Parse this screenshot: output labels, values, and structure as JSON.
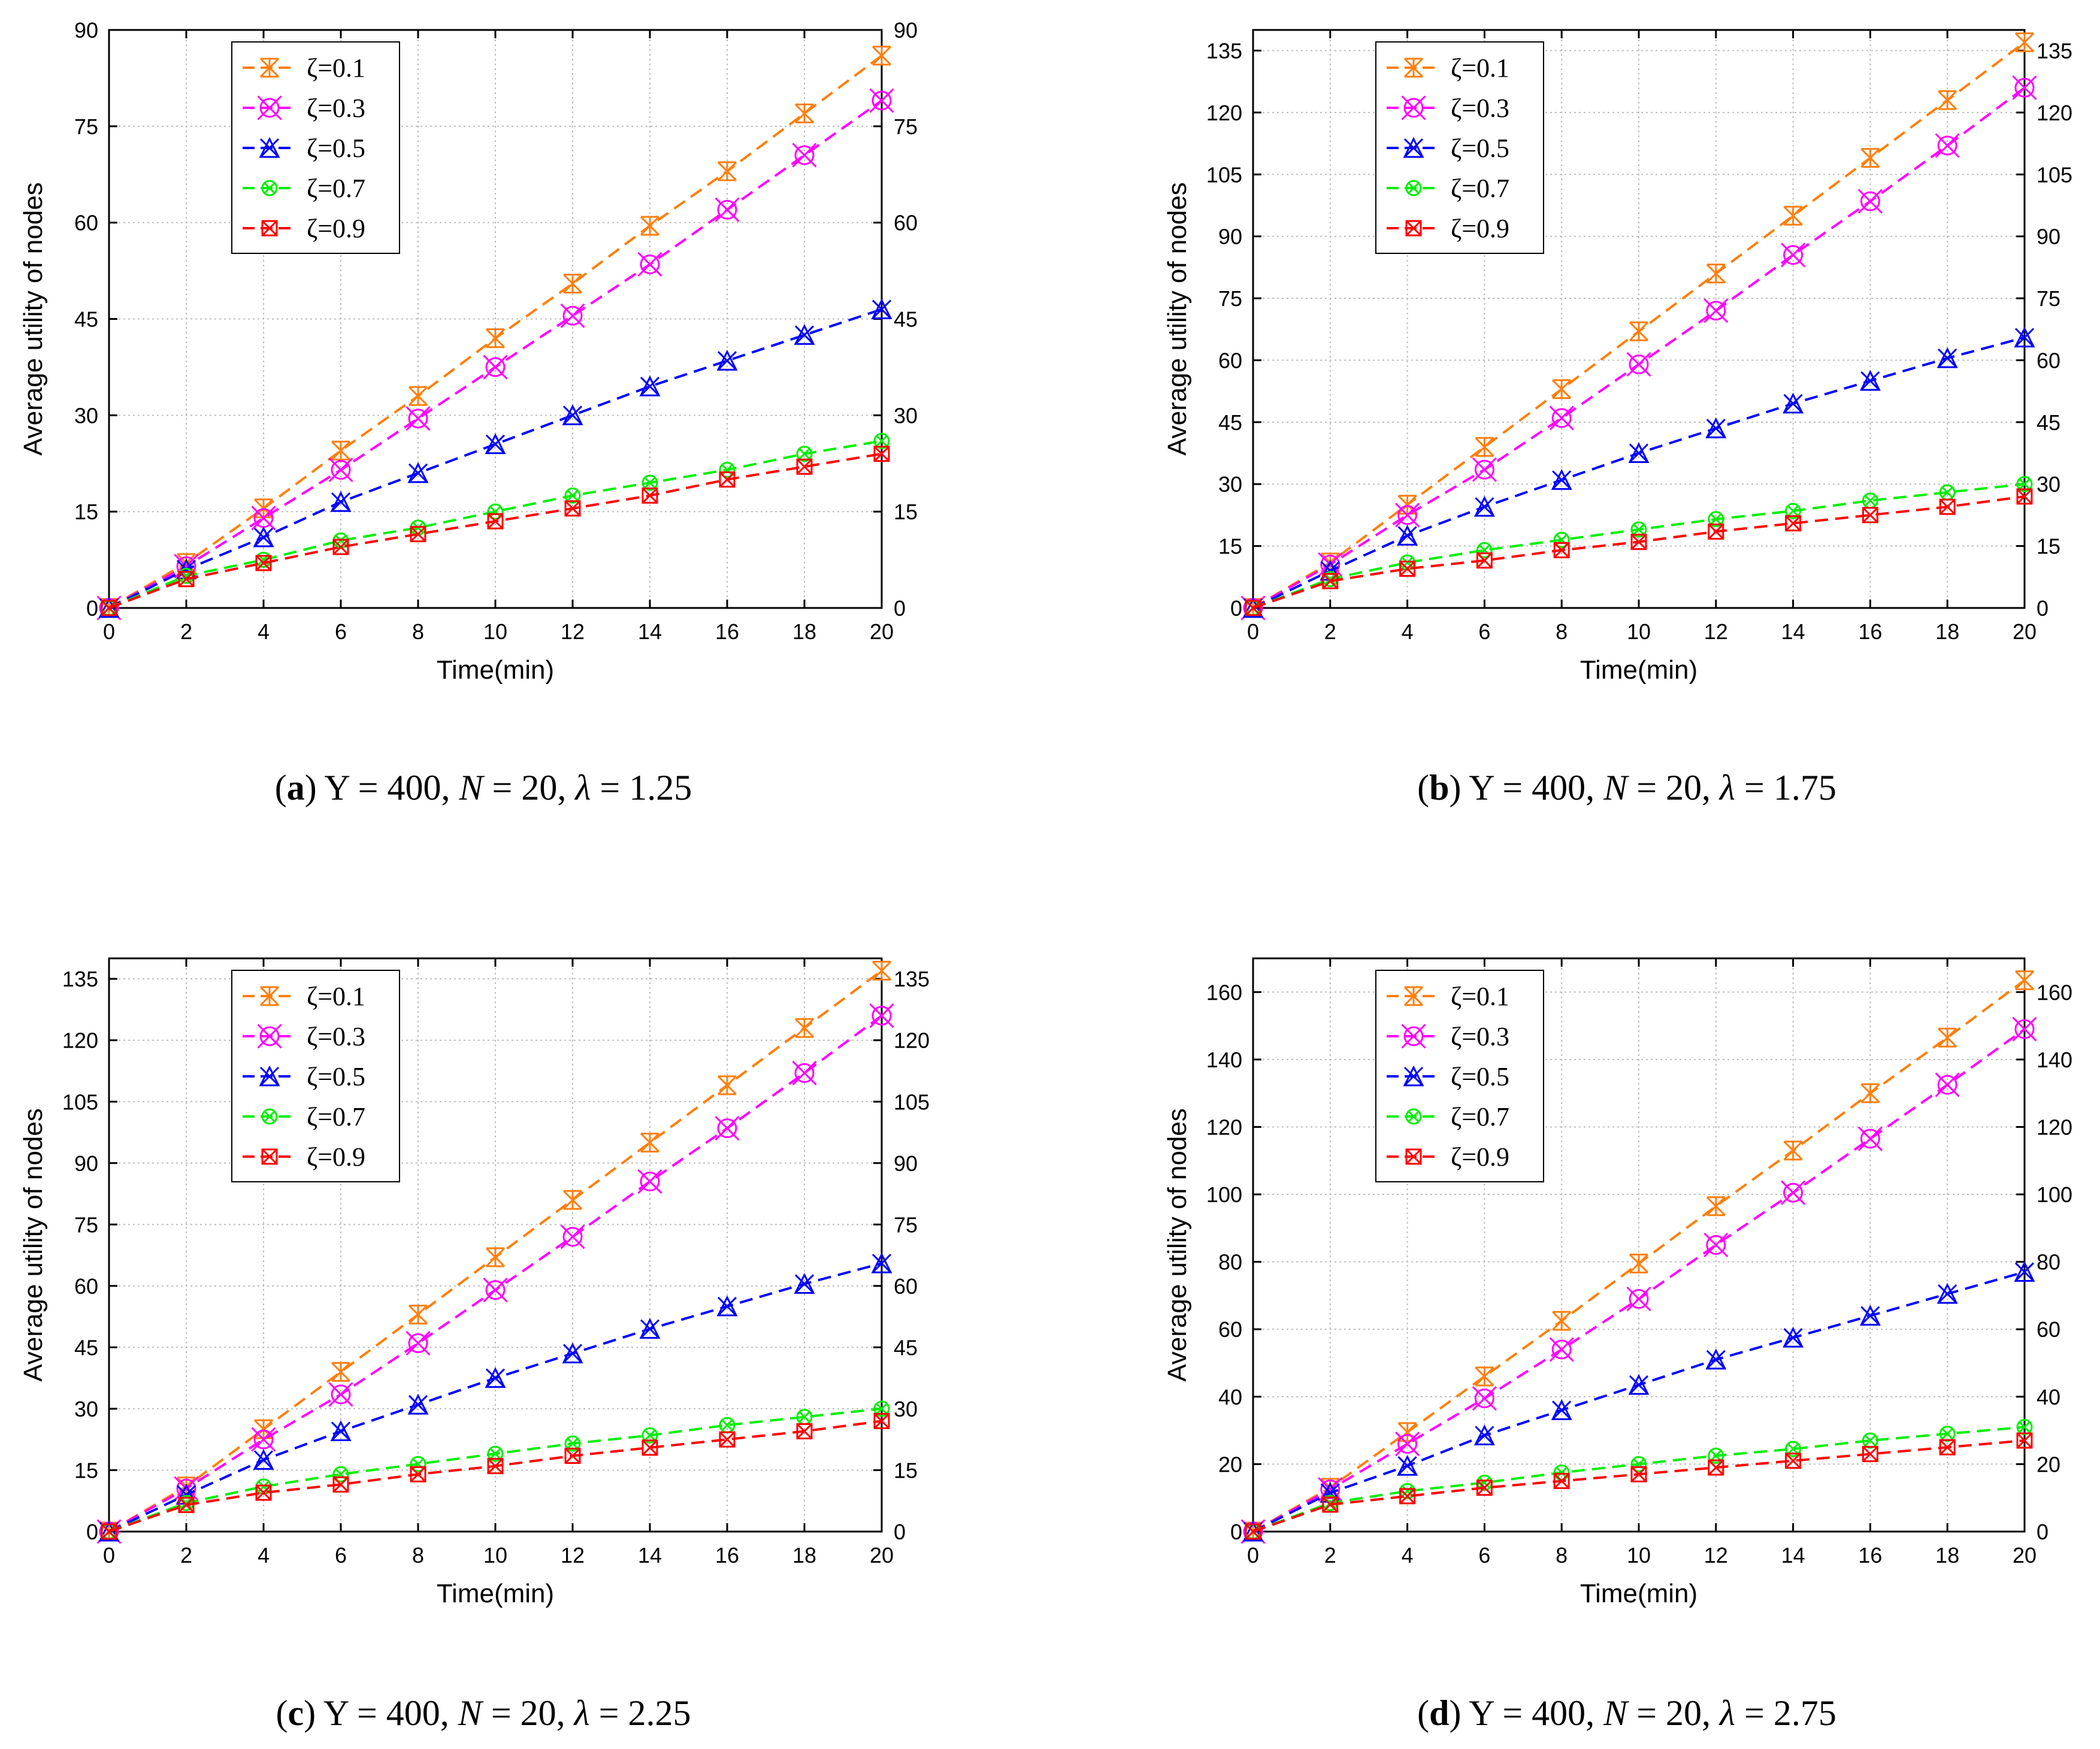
{
  "chart_data": [
    {
      "type": "line",
      "panel_label": "a",
      "caption": {
        "Y": "400",
        "N": "20",
        "lambda": "1.25"
      },
      "xlabel": "Time(min)",
      "ylabel": "Average utility of nodes",
      "x": [
        0,
        2,
        4,
        6,
        8,
        10,
        12,
        14,
        16,
        18,
        20
      ],
      "xlim": [
        0,
        20
      ],
      "ylim": [
        0,
        90
      ],
      "yticks": [
        0,
        15,
        30,
        45,
        60,
        75,
        90
      ],
      "xticks": [
        0,
        2,
        4,
        6,
        8,
        10,
        12,
        14,
        16,
        18,
        20
      ],
      "grid": true,
      "legend_position": "top-left",
      "series": [
        {
          "name": "ζ=0.1",
          "color": "#ff7f0e",
          "values": [
            0,
            7.0,
            15.5,
            24.5,
            33.0,
            42.0,
            50.5,
            59.5,
            68.0,
            77.0,
            86.0
          ]
        },
        {
          "name": "ζ=0.3",
          "color": "#ff00ff",
          "values": [
            0,
            6.5,
            14.0,
            21.5,
            29.5,
            37.5,
            45.5,
            53.5,
            62.0,
            70.5,
            79.0
          ]
        },
        {
          "name": "ζ=0.5",
          "color": "#0000ff",
          "values": [
            0,
            6.0,
            11.0,
            16.5,
            21.0,
            25.5,
            30.0,
            34.5,
            38.5,
            42.5,
            46.5
          ]
        },
        {
          "name": "ζ=0.7",
          "color": "#00ee00",
          "values": [
            0,
            5.0,
            7.5,
            10.5,
            12.5,
            15.0,
            17.5,
            19.5,
            21.5,
            24.0,
            26.0
          ]
        },
        {
          "name": "ζ=0.9",
          "color": "#ff0000",
          "values": [
            0,
            4.5,
            7.0,
            9.5,
            11.5,
            13.5,
            15.5,
            17.5,
            20.0,
            22.0,
            24.0
          ]
        }
      ]
    },
    {
      "type": "line",
      "panel_label": "b",
      "caption": {
        "Y": "400",
        "N": "20",
        "lambda": "1.75"
      },
      "xlabel": "Time(min)",
      "ylabel": "Average utility of nodes",
      "x": [
        0,
        2,
        4,
        6,
        8,
        10,
        12,
        14,
        16,
        18,
        20
      ],
      "xlim": [
        0,
        20
      ],
      "ylim": [
        0,
        140
      ],
      "yticks": [
        0,
        15,
        30,
        45,
        60,
        75,
        90,
        105,
        120,
        135
      ],
      "xticks": [
        0,
        2,
        4,
        6,
        8,
        10,
        12,
        14,
        16,
        18,
        20
      ],
      "grid": true,
      "legend_position": "top-left",
      "series": [
        {
          "name": "ζ=0.1",
          "color": "#ff7f0e",
          "values": [
            0,
            11.0,
            25.0,
            39.0,
            53.0,
            67.0,
            81.0,
            95.0,
            109.0,
            123.0,
            137.0
          ]
        },
        {
          "name": "ζ=0.3",
          "color": "#ff00ff",
          "values": [
            0,
            10.5,
            22.5,
            33.5,
            46.0,
            59.0,
            72.0,
            85.5,
            98.5,
            112.0,
            126.0
          ]
        },
        {
          "name": "ζ=0.5",
          "color": "#0000ff",
          "values": [
            0,
            9.0,
            17.5,
            24.5,
            31.0,
            37.5,
            43.5,
            49.5,
            55.0,
            60.5,
            65.5
          ]
        },
        {
          "name": "ζ=0.7",
          "color": "#00ee00",
          "values": [
            0,
            7.0,
            11.0,
            14.0,
            16.5,
            19.0,
            21.5,
            23.5,
            26.0,
            28.0,
            30.0
          ]
        },
        {
          "name": "ζ=0.9",
          "color": "#ff0000",
          "values": [
            0,
            6.5,
            9.5,
            11.5,
            14.0,
            16.0,
            18.5,
            20.5,
            22.5,
            24.5,
            27.0
          ]
        }
      ]
    },
    {
      "type": "line",
      "panel_label": "c",
      "caption": {
        "Y": "400",
        "N": "20",
        "lambda": "2.25"
      },
      "xlabel": "Time(min)",
      "ylabel": "Average utility of nodes",
      "x": [
        0,
        2,
        4,
        6,
        8,
        10,
        12,
        14,
        16,
        18,
        20
      ],
      "xlim": [
        0,
        20
      ],
      "ylim": [
        0,
        140
      ],
      "yticks": [
        0,
        15,
        30,
        45,
        60,
        75,
        90,
        105,
        120,
        135
      ],
      "xticks": [
        0,
        2,
        4,
        6,
        8,
        10,
        12,
        14,
        16,
        18,
        20
      ],
      "grid": true,
      "legend_position": "top-left",
      "series": [
        {
          "name": "ζ=0.1",
          "color": "#ff7f0e",
          "values": [
            0,
            11.0,
            25.0,
            39.0,
            53.0,
            67.0,
            81.0,
            95.0,
            109.0,
            123.0,
            137.0
          ]
        },
        {
          "name": "ζ=0.3",
          "color": "#ff00ff",
          "values": [
            0,
            10.5,
            22.5,
            33.5,
            46.0,
            59.0,
            72.0,
            85.5,
            98.5,
            112.0,
            126.0
          ]
        },
        {
          "name": "ζ=0.5",
          "color": "#0000ff",
          "values": [
            0,
            9.0,
            17.5,
            24.5,
            31.0,
            37.5,
            43.5,
            49.5,
            55.0,
            60.5,
            65.5
          ]
        },
        {
          "name": "ζ=0.7",
          "color": "#00ee00",
          "values": [
            0,
            7.0,
            11.0,
            14.0,
            16.5,
            19.0,
            21.5,
            23.5,
            26.0,
            28.0,
            30.0
          ]
        },
        {
          "name": "ζ=0.9",
          "color": "#ff0000",
          "values": [
            0,
            6.5,
            9.5,
            11.5,
            14.0,
            16.0,
            18.5,
            20.5,
            22.5,
            24.5,
            27.0
          ]
        }
      ]
    },
    {
      "type": "line",
      "panel_label": "d",
      "caption": {
        "Y": "400",
        "N": "20",
        "lambda": "2.75"
      },
      "xlabel": "Time(min)",
      "ylabel": "Average utility of nodes",
      "x": [
        0,
        2,
        4,
        6,
        8,
        10,
        12,
        14,
        16,
        18,
        20
      ],
      "xlim": [
        0,
        20
      ],
      "ylim": [
        0,
        170
      ],
      "yticks": [
        0,
        20,
        40,
        60,
        80,
        100,
        120,
        140,
        160
      ],
      "xticks": [
        0,
        2,
        4,
        6,
        8,
        10,
        12,
        14,
        16,
        18,
        20
      ],
      "grid": true,
      "legend_position": "top-left",
      "series": [
        {
          "name": "ζ=0.1",
          "color": "#ff7f0e",
          "values": [
            0,
            13.0,
            29.5,
            46.0,
            62.5,
            79.5,
            96.5,
            113.0,
            130.0,
            146.5,
            163.5
          ]
        },
        {
          "name": "ζ=0.3",
          "color": "#ff00ff",
          "values": [
            0,
            12.5,
            26.0,
            39.5,
            54.0,
            69.0,
            85.0,
            100.5,
            116.5,
            132.5,
            149.0
          ]
        },
        {
          "name": "ζ=0.5",
          "color": "#0000ff",
          "values": [
            0,
            11.5,
            19.5,
            28.5,
            36.0,
            43.5,
            51.0,
            57.5,
            64.0,
            70.5,
            77.0
          ]
        },
        {
          "name": "ζ=0.7",
          "color": "#00ee00",
          "values": [
            0,
            8.5,
            12.0,
            14.5,
            17.5,
            20.0,
            22.5,
            24.5,
            27.0,
            29.0,
            31.0
          ]
        },
        {
          "name": "ζ=0.9",
          "color": "#ff0000",
          "values": [
            0,
            8.0,
            10.5,
            13.0,
            15.0,
            17.0,
            19.0,
            21.0,
            23.0,
            25.0,
            27.0
          ]
        }
      ]
    }
  ]
}
